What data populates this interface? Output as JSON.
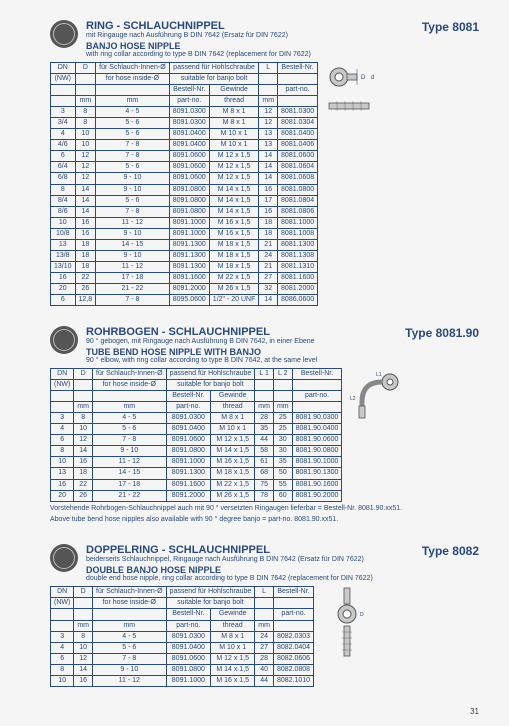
{
  "page_number": "31",
  "sections": [
    {
      "type_label": "Type 8081",
      "title_de": "RING - SCHLAUCHNIPPEL",
      "sub_de": "mit Ringauge nach Ausführung B DIN 7642 (Ersatz für DIN 7622)",
      "title_en": "BANJO HOSE NIPPLE",
      "sub_en": "with ring collar according to type B DIN 7642 (replacement for DIN 7622)",
      "columns": {
        "dn": "DN",
        "nw": "(NW)",
        "d": "D",
        "d_mm": "mm",
        "hose_de": "für Schlauch-Innen-Ø",
        "hose_en": "for hose inside-Ø",
        "hose_mm": "mm",
        "banjo_de": "passend für Hohlschraube",
        "banjo_en": "suitable for banjo bolt",
        "partno_de": "Bestell-Nr.",
        "partno_en": "part-no.",
        "thread_de": "Gewinde",
        "thread_en": "thread",
        "l": "L",
        "l_mm": "mm",
        "order_de": "Bestell-Nr.",
        "order_en": "part-no."
      },
      "rows": [
        {
          "dn": "3",
          "d": "8",
          "hose": "4 - 5",
          "pn": "8091.0300",
          "th": "M 8 x 1",
          "l": "12",
          "ord": "8081.0300"
        },
        {
          "dn": "3/4",
          "d": "8",
          "hose": "5 - 6",
          "pn": "8091.0300",
          "th": "M 8 x 1",
          "l": "12",
          "ord": "8081.0304"
        },
        {
          "dn": "4",
          "d": "10",
          "hose": "5 - 6",
          "pn": "8091.0400",
          "th": "M 10 x 1",
          "l": "13",
          "ord": "8081.0400"
        },
        {
          "dn": "4/6",
          "d": "10",
          "hose": "7 - 8",
          "pn": "8091.0400",
          "th": "M 10 x 1",
          "l": "13",
          "ord": "8081.0406"
        },
        {
          "dn": "6",
          "d": "12",
          "hose": "7 - 8",
          "pn": "8091.0600",
          "th": "M 12 x 1,5",
          "l": "14",
          "ord": "8081.0600"
        },
        {
          "dn": "6/4",
          "d": "12",
          "hose": "5 - 6",
          "pn": "8091.0600",
          "th": "M 12 x 1,5",
          "l": "14",
          "ord": "8081.0604"
        },
        {
          "dn": "6/8",
          "d": "12",
          "hose": "9 - 10",
          "pn": "8091.0600",
          "th": "M 12 x 1,5",
          "l": "14",
          "ord": "8081.0608"
        },
        {
          "dn": "8",
          "d": "14",
          "hose": "9 - 10",
          "pn": "8091.0800",
          "th": "M 14 x 1,5",
          "l": "16",
          "ord": "8081.0800"
        },
        {
          "dn": "8/4",
          "d": "14",
          "hose": "5 - 6",
          "pn": "8091.0800",
          "th": "M 14 x 1,5",
          "l": "17",
          "ord": "8081.0804"
        },
        {
          "dn": "8/6",
          "d": "14",
          "hose": "7 - 8",
          "pn": "8091.0800",
          "th": "M 14 x 1,5",
          "l": "16",
          "ord": "8081.0806"
        },
        {
          "dn": "10",
          "d": "16",
          "hose": "11 - 12",
          "pn": "8091.1000",
          "th": "M 16 x 1,5",
          "l": "18",
          "ord": "8081.1000"
        },
        {
          "dn": "10/8",
          "d": "16",
          "hose": "9 - 10",
          "pn": "8091.1000",
          "th": "M 16 x 1,5",
          "l": "18",
          "ord": "8081.1008"
        },
        {
          "dn": "13",
          "d": "18",
          "hose": "14 - 15",
          "pn": "8091.1300",
          "th": "M 18 x 1,5",
          "l": "21",
          "ord": "8081.1300"
        },
        {
          "dn": "13/8",
          "d": "18",
          "hose": "9 - 10",
          "pn": "8091.1300",
          "th": "M 18 x 1,5",
          "l": "24",
          "ord": "8081.1308"
        },
        {
          "dn": "13/10",
          "d": "18",
          "hose": "11 - 12",
          "pn": "8091.1300",
          "th": "M 18 x 1,5",
          "l": "21",
          "ord": "8081.1310"
        },
        {
          "dn": "16",
          "d": "22",
          "hose": "17 - 18",
          "pn": "8091.1600",
          "th": "M 22 x 1,5",
          "l": "27",
          "ord": "8081.1600"
        },
        {
          "dn": "20",
          "d": "26",
          "hose": "21 - 22",
          "pn": "8091.2000",
          "th": "M 26 x 1,5",
          "l": "32",
          "ord": "8081.2000"
        }
      ],
      "extra_row": {
        "dn": "6",
        "d": "12,8",
        "hose": "7 - 8",
        "pn": "8095.0600",
        "th": "1/2\" - 20 UNF",
        "l": "14",
        "ord": "8086.0600"
      }
    },
    {
      "type_label": "Type 8081.90",
      "title_de": "ROHRBOGEN - SCHLAUCHNIPPEL",
      "sub_de": "90 ° gebogen, mit Ringauge nach Ausführung B DIN 7642, in einer Ebene",
      "title_en": "TUBE BEND HOSE NIPPLE WITH BANJO",
      "sub_en": "90 ° elbow, with ring collar according to type B DIN 7642, at the same level",
      "columns": {
        "dn": "DN",
        "nw": "(NW)",
        "d": "D",
        "d_mm": "mm",
        "hose_de": "für Schlauch-Innen-Ø",
        "hose_en": "for hose inside-Ø",
        "hose_mm": "mm",
        "banjo_de": "passend für Hohlschraube",
        "banjo_en": "suitable for banjo bolt",
        "partno_de": "Bestell-Nr.",
        "partno_en": "part-no.",
        "thread_de": "Gewinde",
        "thread_en": "thread",
        "l1": "L 1",
        "l2": "L 2",
        "l_mm": "mm",
        "order_de": "Bestell-Nr.",
        "order_en": "part-no."
      },
      "rows": [
        {
          "dn": "3",
          "d": "8",
          "hose": "4 - 5",
          "pn": "8091.0300",
          "th": "M 8 x 1",
          "l1": "28",
          "l2": "25",
          "ord": "8081.90.0300"
        },
        {
          "dn": "4",
          "d": "10",
          "hose": "5 - 6",
          "pn": "8091.0400",
          "th": "M 10 x 1",
          "l1": "35",
          "l2": "25",
          "ord": "8081.90.0400"
        },
        {
          "dn": "6",
          "d": "12",
          "hose": "7 - 8",
          "pn": "8091.0600",
          "th": "M 12 x 1,5",
          "l1": "44",
          "l2": "30",
          "ord": "8081.90.0600"
        },
        {
          "dn": "8",
          "d": "14",
          "hose": "9 - 10",
          "pn": "8091.0800",
          "th": "M 14 x 1,5",
          "l1": "58",
          "l2": "30",
          "ord": "8081.90.0800"
        },
        {
          "dn": "10",
          "d": "16",
          "hose": "11 - 12",
          "pn": "8091.1000",
          "th": "M 16 x 1,5",
          "l1": "61",
          "l2": "35",
          "ord": "8081.90.1000"
        },
        {
          "dn": "13",
          "d": "18",
          "hose": "14 - 15",
          "pn": "8091.1300",
          "th": "M 18 x 1,5",
          "l1": "68",
          "l2": "50",
          "ord": "8081.90.1300"
        },
        {
          "dn": "16",
          "d": "22",
          "hose": "17 - 18",
          "pn": "8091.1600",
          "th": "M 22 x 1,5",
          "l1": "75",
          "l2": "55",
          "ord": "8081.90.1600"
        },
        {
          "dn": "20",
          "d": "26",
          "hose": "21 - 22",
          "pn": "8091.2000",
          "th": "M 26 x 1,5",
          "l1": "78",
          "l2": "60",
          "ord": "8081.90.2000"
        }
      ],
      "footnote_de": "Vorstehende Rohrbogen-Schlauchnippel auch mit 90 ° versetzten Ringaugen lieferbar = Bestell-Nr. 8081.90.xx51.",
      "footnote_en": "Above tube bend hose nipples also available with 90 ° degree banjo = part-no. 8081.90.xx51."
    },
    {
      "type_label": "Type 8082",
      "title_de": "DOPPELRING - SCHLAUCHNIPPEL",
      "sub_de": "beiderseits Schlauchnippel, Ringauge nach Ausführung B DIN 7642 (Ersatz für DIN 7622)",
      "title_en": "DOUBLE BANJO HOSE NIPPLE",
      "sub_en": "double end hose nipple, ring collar according to type B DIN 7642 (replacement for DIN 7622)",
      "columns": {
        "dn": "DN",
        "nw": "(NW)",
        "d": "D",
        "d_mm": "mm",
        "hose_de": "für Schlauch-Innen-Ø",
        "hose_en": "for hose inside-Ø",
        "hose_mm": "mm",
        "banjo_de": "passend für Hohlschraube",
        "banjo_en": "suitable for banjo bolt",
        "partno_de": "Bestell-Nr.",
        "partno_en": "part-no.",
        "thread_de": "Gewinde",
        "thread_en": "thread",
        "l": "L",
        "l_mm": "mm",
        "order_de": "Bestell-Nr.",
        "order_en": "part-no."
      },
      "rows": [
        {
          "dn": "3",
          "d": "8",
          "hose": "4 - 5",
          "pn": "8091.0300",
          "th": "M 8 x 1",
          "l": "24",
          "ord": "8082.0303"
        },
        {
          "dn": "4",
          "d": "10",
          "hose": "5 - 6",
          "pn": "8091.0400",
          "th": "M 10 x 1",
          "l": "27",
          "ord": "8082.0404"
        },
        {
          "dn": "6",
          "d": "12",
          "hose": "7 - 8",
          "pn": "8091.0600",
          "th": "M 12 x 1,5",
          "l": "28",
          "ord": "8082.0606"
        },
        {
          "dn": "8",
          "d": "14",
          "hose": "9 - 10",
          "pn": "8091.0800",
          "th": "M 14 x 1,5",
          "l": "40",
          "ord": "8082.0808"
        },
        {
          "dn": "10",
          "d": "16",
          "hose": "11 - 12",
          "pn": "8091.1000",
          "th": "M 16 x 1,5",
          "l": "44",
          "ord": "8082.1010"
        }
      ]
    }
  ]
}
